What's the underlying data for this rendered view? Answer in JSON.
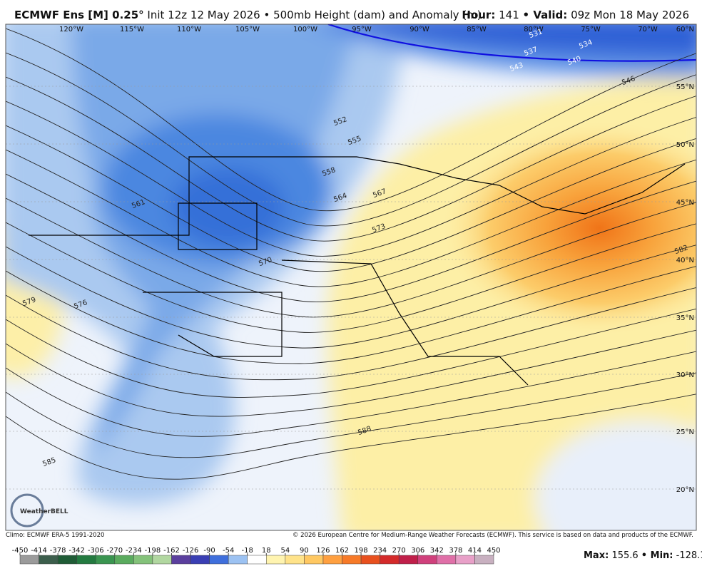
{
  "header": {
    "title": "ECMWF Ens [M] 0.25°",
    "subtitle": "Init 12z 12 May 2026 • 500mb Height (dam) and Anomaly (m)",
    "hour_label": "Hour:",
    "hour": 141,
    "valid_label": "• Valid:",
    "valid": "09z Mon 18 May 2026"
  },
  "map": {
    "longitudes": [
      "120°W",
      "115°W",
      "110°W",
      "105°W",
      "100°W",
      "95°W",
      "90°W",
      "85°W",
      "80°W",
      "75°W",
      "70°W"
    ],
    "latitudes": [
      "60°N",
      "55°N",
      "50°N",
      "45°N",
      "40°N",
      "35°N",
      "30°N",
      "25°N",
      "20°N"
    ],
    "contours": [
      531,
      534,
      537,
      540,
      543,
      546,
      552,
      555,
      558,
      561,
      564,
      567,
      570,
      573,
      576,
      579,
      582,
      585,
      588
    ],
    "logo": "WeatherBELL"
  },
  "footer": {
    "climo": "Climo: ECMWF ERA-5 1991-2020",
    "credit": "© 2026 European Centre for Medium-Range Weather Forecasts (ECMWF). This service is based on data and products of the ECMWF."
  },
  "colorbar": {
    "ticks": [
      -450,
      -414,
      -378,
      -342,
      -306,
      -270,
      -234,
      -198,
      -162,
      -126,
      -90,
      -54,
      -18,
      18,
      54,
      90,
      126,
      162,
      198,
      234,
      270,
      306,
      342,
      378,
      414,
      450
    ],
    "colors": [
      "#9b9b9b",
      "#3c5e4c",
      "#1f5c36",
      "#237a40",
      "#3a9550",
      "#5aab5e",
      "#84c27a",
      "#b1d7a0",
      "#5b3f9e",
      "#3a3fb4",
      "#3f6fdc",
      "#9cc2f2",
      "#ffffff",
      "#fff4b0",
      "#ffe38a",
      "#ffc862",
      "#ffa040",
      "#f77a28",
      "#e8501e",
      "#d42a2a",
      "#c01f4a",
      "#d0407c",
      "#e070a8",
      "#e8a0c8",
      "#c8b0c0"
    ]
  },
  "stats": {
    "max_label": "Max:",
    "max": 155.6,
    "min_label": "• Min:",
    "min": -128.1
  }
}
